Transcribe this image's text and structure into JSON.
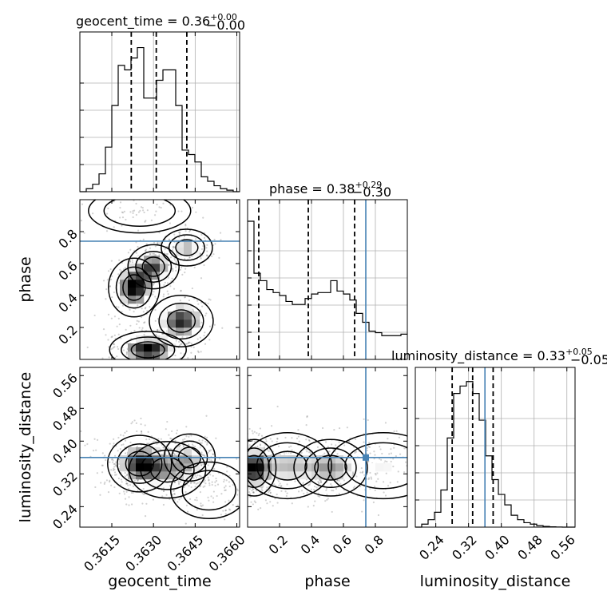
{
  "chart_data": {
    "type": "corner",
    "parameters": [
      "geocent_time",
      "phase",
      "luminosity_distance"
    ],
    "titles": [
      {
        "param": "geocent_time",
        "text": "geocent_time = 0.36",
        "sup": "+0.00",
        "sub": "−0.00"
      },
      {
        "param": "phase",
        "text": "phase = 0.38",
        "sup": "+0.29",
        "sub": "−0.30"
      },
      {
        "param": "luminosity_distance",
        "text": "luminosity_distance = 0.33",
        "sup": "+0.05",
        "sub": "−0.05"
      }
    ],
    "axis_labels": {
      "geocent_time": "geocent_time",
      "phase": "phase",
      "luminosity_distance": "luminosity_distance"
    },
    "ranges": {
      "geocent_time": [
        0.36035,
        0.3661
      ],
      "phase": [
        0.0,
        1.0
      ],
      "luminosity_distance": [
        0.19,
        0.58
      ]
    },
    "ticks": {
      "geocent_time": {
        "values": [
          0.3615,
          0.363,
          0.3645,
          0.366
        ],
        "labels": [
          "0.3615",
          "0.3630",
          "0.3645",
          "0.3660"
        ]
      },
      "phase": {
        "values": [
          0.2,
          0.4,
          0.6,
          0.8
        ],
        "labels": [
          "0.2",
          "0.4",
          "0.6",
          "0.8"
        ]
      },
      "luminosity_distance": {
        "values": [
          0.24,
          0.32,
          0.4,
          0.48,
          0.56
        ],
        "labels": [
          "0.24",
          "0.32",
          "0.40",
          "0.48",
          "0.56"
        ]
      }
    },
    "quantiles": {
      "geocent_time": [
        0.3622,
        0.3631,
        0.3642
      ],
      "phase": [
        0.07,
        0.38,
        0.67
      ],
      "luminosity_distance": [
        0.28,
        0.33,
        0.38
      ]
    },
    "truths": {
      "phase": 0.74,
      "luminosity_distance": 0.36
    },
    "histograms": {
      "geocent_time": {
        "edges": [
          0.36035,
          0.36058,
          0.36081,
          0.36104,
          0.36127,
          0.3615,
          0.36173,
          0.36196,
          0.36219,
          0.36242,
          0.36265,
          0.36288,
          0.36311,
          0.36334,
          0.36357,
          0.3638,
          0.36403,
          0.36426,
          0.36449,
          0.36472,
          0.36495,
          0.36518,
          0.36541,
          0.36564,
          0.36587,
          0.3661
        ],
        "heights": [
          0.0,
          0.02,
          0.05,
          0.12,
          0.3,
          0.58,
          0.85,
          0.82,
          0.9,
          0.97,
          0.63,
          0.63,
          0.75,
          0.82,
          0.82,
          0.58,
          0.28,
          0.25,
          0.2,
          0.1,
          0.07,
          0.04,
          0.02,
          0.01,
          0.0
        ]
      },
      "phase": {
        "edges": [
          0.0,
          0.04,
          0.08,
          0.12,
          0.16,
          0.2,
          0.24,
          0.28,
          0.32,
          0.36,
          0.4,
          0.44,
          0.48,
          0.52,
          0.56,
          0.6,
          0.64,
          0.68,
          0.72,
          0.76,
          0.8,
          0.84,
          0.88,
          0.92,
          0.96,
          1.0
        ],
        "heights": [
          0.93,
          0.58,
          0.53,
          0.47,
          0.45,
          0.43,
          0.39,
          0.37,
          0.37,
          0.41,
          0.44,
          0.45,
          0.45,
          0.53,
          0.46,
          0.44,
          0.4,
          0.31,
          0.25,
          0.19,
          0.18,
          0.16,
          0.16,
          0.16,
          0.17
        ]
      },
      "luminosity_distance": {
        "edges": [
          0.19,
          0.2056,
          0.2212,
          0.2368,
          0.2524,
          0.268,
          0.2836,
          0.2992,
          0.3148,
          0.3304,
          0.346,
          0.3616,
          0.3772,
          0.3928,
          0.4084,
          0.424,
          0.4396,
          0.4552,
          0.4708,
          0.4864,
          0.502,
          0.5176,
          0.5332,
          0.5488,
          0.5644,
          0.58
        ],
        "heights": [
          0.0,
          0.02,
          0.05,
          0.1,
          0.25,
          0.6,
          0.9,
          0.95,
          0.98,
          0.9,
          0.72,
          0.48,
          0.32,
          0.22,
          0.15,
          0.08,
          0.05,
          0.03,
          0.02,
          0.01,
          0.005,
          0.002,
          0.001,
          0.0,
          0.0
        ]
      }
    },
    "joint_densities": [
      {
        "x": "geocent_time",
        "y": "phase",
        "components": [
          {
            "x": 0.3623,
            "y": 0.45,
            "sx": 0.0004,
            "sy": 0.08,
            "w": 0.9
          },
          {
            "x": 0.363,
            "y": 0.58,
            "sx": 0.0004,
            "sy": 0.06,
            "w": 0.7
          },
          {
            "x": 0.3628,
            "y": 0.06,
            "sx": 0.0006,
            "sy": 0.05,
            "w": 0.9
          },
          {
            "x": 0.364,
            "y": 0.24,
            "sx": 0.0005,
            "sy": 0.07,
            "w": 0.8
          },
          {
            "x": 0.3642,
            "y": 0.7,
            "sx": 0.0004,
            "sy": 0.05,
            "w": 0.5
          },
          {
            "x": 0.3625,
            "y": 0.93,
            "sx": 0.0008,
            "sy": 0.06,
            "w": 0.25
          }
        ]
      },
      {
        "x": "geocent_time",
        "y": "luminosity_distance",
        "components": [
          {
            "x": 0.3625,
            "y": 0.345,
            "sx": 0.0005,
            "sy": 0.03,
            "w": 1.0
          },
          {
            "x": 0.3635,
            "y": 0.33,
            "sx": 0.0006,
            "sy": 0.03,
            "w": 0.6
          },
          {
            "x": 0.3643,
            "y": 0.36,
            "sx": 0.0004,
            "sy": 0.025,
            "w": 0.5
          },
          {
            "x": 0.365,
            "y": 0.28,
            "sx": 0.0006,
            "sy": 0.03,
            "w": 0.25
          }
        ]
      },
      {
        "x": "phase",
        "y": "luminosity_distance",
        "components": [
          {
            "x": 0.04,
            "y": 0.335,
            "sx": 0.06,
            "sy": 0.03,
            "w": 1.0
          },
          {
            "x": 0.25,
            "y": 0.34,
            "sx": 0.12,
            "sy": 0.035,
            "w": 0.55
          },
          {
            "x": 0.52,
            "y": 0.335,
            "sx": 0.1,
            "sy": 0.03,
            "w": 0.6
          },
          {
            "x": 0.85,
            "y": 0.34,
            "sx": 0.15,
            "sy": 0.035,
            "w": 0.4
          }
        ]
      }
    ]
  }
}
